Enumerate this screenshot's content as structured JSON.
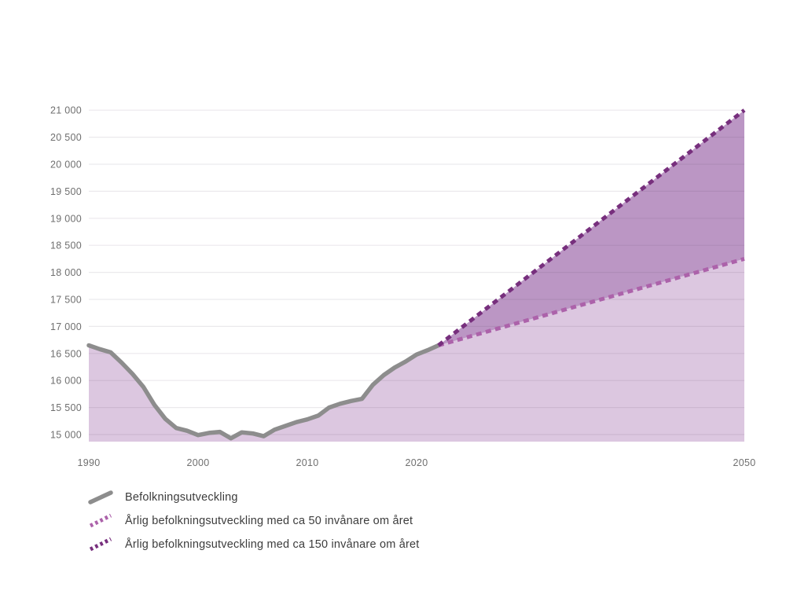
{
  "chart_data": {
    "type": "area",
    "title": "",
    "x_range": [
      1990,
      2050
    ],
    "x_ticks": [
      "1990",
      "2000",
      "2010",
      "2020",
      "2050"
    ],
    "y_ticks": [
      15000,
      15500,
      16000,
      16500,
      17000,
      17500,
      18000,
      18500,
      19000,
      19500,
      20000,
      20500,
      21000
    ],
    "y_range": [
      14870,
      21000
    ],
    "grid": true,
    "grid_color": "rgba(90,70,100,0.12)",
    "axis_text_color": "#6F6F6F",
    "legend_position": "bottom-left",
    "series": [
      {
        "name": "Befolkningsutveckling",
        "style": "solid",
        "color": "#8D8D8D",
        "area_color": "#DCC7E0",
        "points": [
          [
            1990,
            16650
          ],
          [
            1991,
            16580
          ],
          [
            1992,
            16520
          ],
          [
            1993,
            16330
          ],
          [
            1994,
            16120
          ],
          [
            1995,
            15880
          ],
          [
            1996,
            15550
          ],
          [
            1997,
            15290
          ],
          [
            1998,
            15120
          ],
          [
            1999,
            15070
          ],
          [
            2000,
            14990
          ],
          [
            2001,
            15030
          ],
          [
            2002,
            15050
          ],
          [
            2003,
            14930
          ],
          [
            2004,
            15040
          ],
          [
            2005,
            15020
          ],
          [
            2006,
            14970
          ],
          [
            2007,
            15090
          ],
          [
            2008,
            15160
          ],
          [
            2009,
            15230
          ],
          [
            2010,
            15280
          ],
          [
            2011,
            15350
          ],
          [
            2012,
            15500
          ],
          [
            2013,
            15570
          ],
          [
            2014,
            15620
          ],
          [
            2015,
            15660
          ],
          [
            2016,
            15920
          ],
          [
            2017,
            16100
          ],
          [
            2018,
            16240
          ],
          [
            2019,
            16350
          ],
          [
            2020,
            16480
          ],
          [
            2021,
            16560
          ],
          [
            2022,
            16650
          ]
        ]
      },
      {
        "name": "Årlig befolkningsutveckling med ca 50 invånare om året",
        "style": "dashed",
        "color": "#AC62AA",
        "area_color": "#DCC7E0",
        "points": [
          [
            2022,
            16650
          ],
          [
            2050,
            18250
          ]
        ]
      },
      {
        "name": "Årlig befolkningsutveckling med ca 150 invånare om året",
        "style": "dashed",
        "color": "#772F7D",
        "area_color": "#BB96C4",
        "points": [
          [
            2022,
            16650
          ],
          [
            2050,
            21000
          ]
        ]
      }
    ]
  },
  "legend": {
    "items": [
      {
        "label": "Befolkningsutveckling",
        "color": "#8D8D8D",
        "dashed": false
      },
      {
        "label": "Årlig befolkningsutveckling med ca 50 invånare om året",
        "color": "#AC62AA",
        "dashed": true
      },
      {
        "label": "Årlig befolkningsutveckling med ca 150 invånare om året",
        "color": "#772F7D",
        "dashed": true
      }
    ]
  }
}
